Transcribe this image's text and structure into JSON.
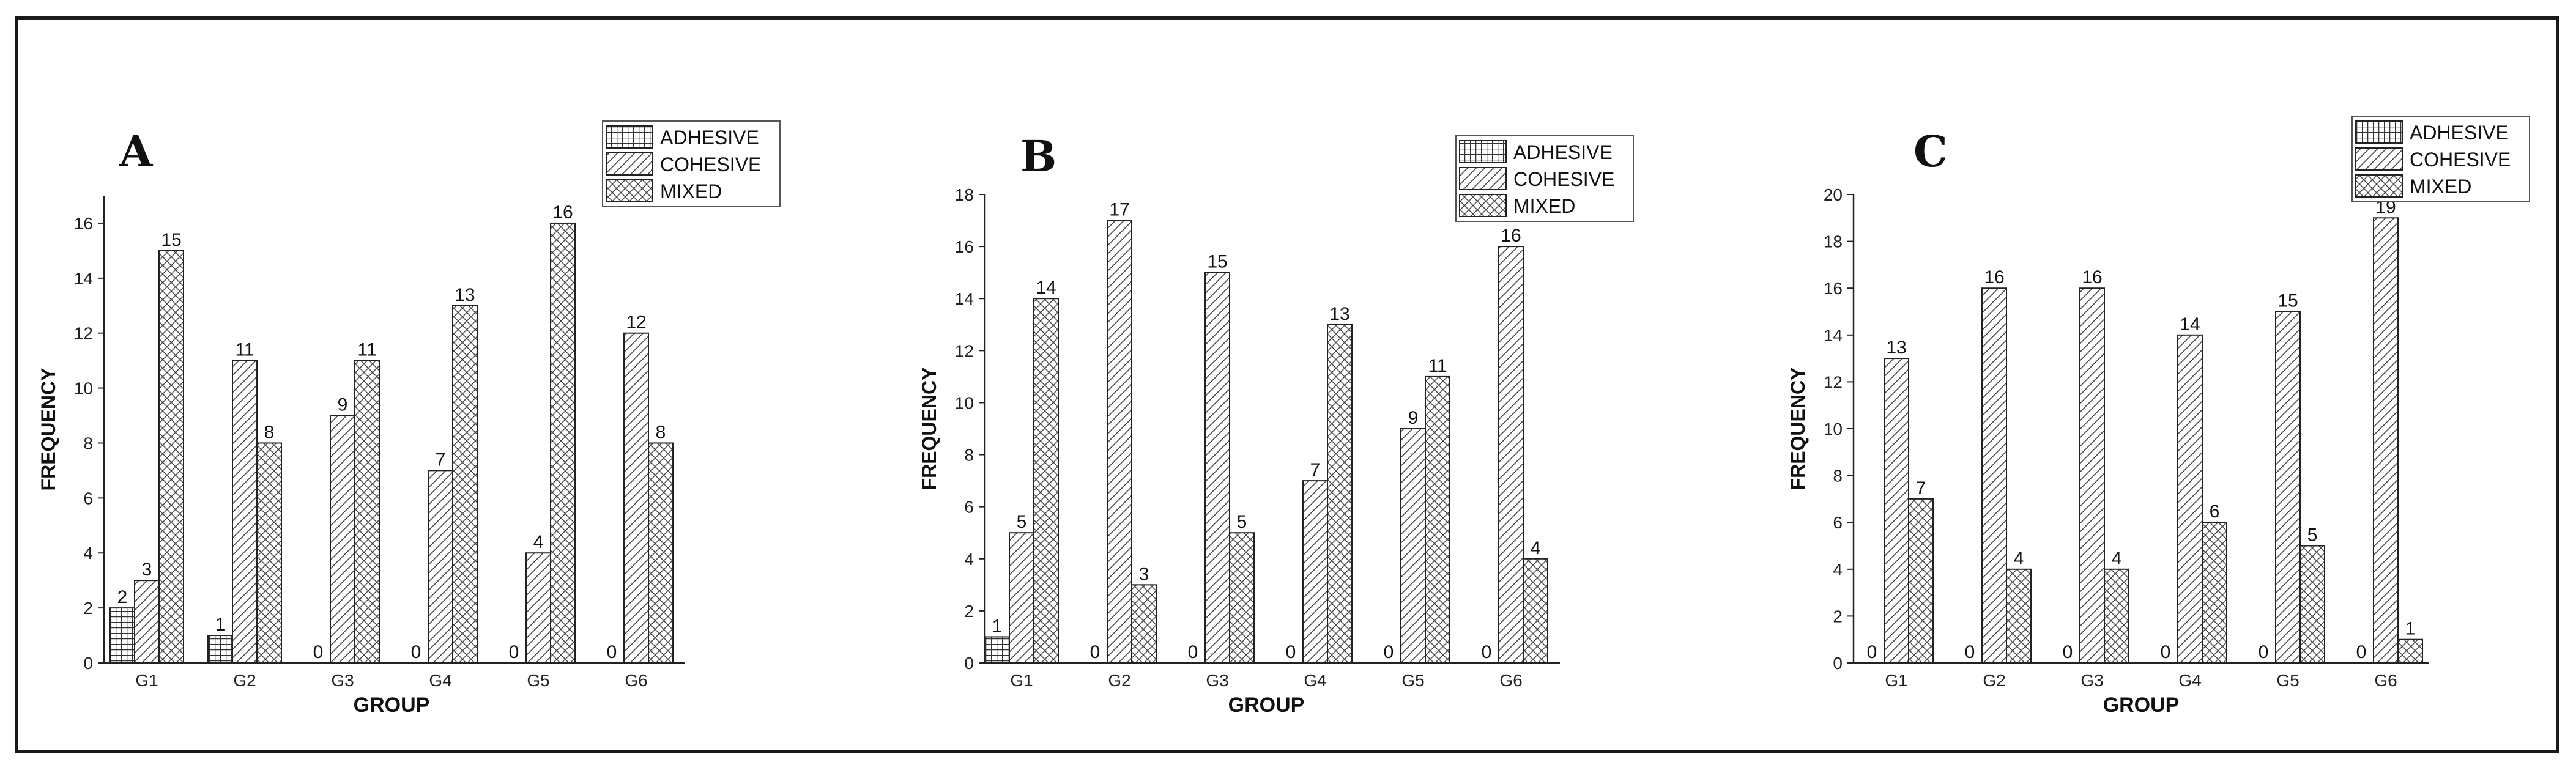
{
  "figure": {
    "legend_labels": [
      "ADHESIVE",
      "COHESIVE",
      "MIXED"
    ],
    "xlabel": "GROUP",
    "ylabel": "FREQUENCY"
  },
  "chart_data": [
    {
      "type": "bar",
      "panel": "A",
      "xlabel": "GROUP",
      "ylabel": "FREQUENCY",
      "ylim": [
        0,
        17
      ],
      "yticks": [
        0,
        2,
        4,
        6,
        8,
        10,
        12,
        14,
        16
      ],
      "categories": [
        "G1",
        "G2",
        "G3",
        "G4",
        "G5",
        "G6"
      ],
      "series": [
        {
          "name": "ADHESIVE",
          "values": [
            2,
            1,
            0,
            0,
            0,
            0
          ]
        },
        {
          "name": "COHESIVE",
          "values": [
            3,
            11,
            9,
            7,
            4,
            12
          ]
        },
        {
          "name": "MIXED",
          "values": [
            15,
            8,
            11,
            13,
            16,
            8
          ]
        }
      ],
      "legend_position": "top-right",
      "grid": false
    },
    {
      "type": "bar",
      "panel": "B",
      "xlabel": "GROUP",
      "ylabel": "FREQUENCY",
      "ylim": [
        0,
        18
      ],
      "yticks": [
        0,
        2,
        4,
        6,
        8,
        10,
        12,
        14,
        16,
        18
      ],
      "categories": [
        "G1",
        "G2",
        "G3",
        "G4",
        "G5",
        "G6"
      ],
      "series": [
        {
          "name": "ADHESIVE",
          "values": [
            1,
            0,
            0,
            0,
            0,
            0
          ]
        },
        {
          "name": "COHESIVE",
          "values": [
            5,
            17,
            15,
            7,
            9,
            16
          ]
        },
        {
          "name": "MIXED",
          "values": [
            14,
            3,
            5,
            13,
            11,
            4
          ]
        }
      ],
      "legend_position": "top-right",
      "grid": false
    },
    {
      "type": "bar",
      "panel": "C",
      "xlabel": "GROUP",
      "ylabel": "FREQUENCY",
      "ylim": [
        0,
        20
      ],
      "yticks": [
        0,
        2,
        4,
        6,
        8,
        10,
        12,
        14,
        16,
        18,
        20
      ],
      "categories": [
        "G1",
        "G2",
        "G3",
        "G4",
        "G5",
        "G6"
      ],
      "series": [
        {
          "name": "ADHESIVE",
          "values": [
            0,
            0,
            0,
            0,
            0,
            0
          ]
        },
        {
          "name": "COHESIVE",
          "values": [
            13,
            16,
            16,
            14,
            15,
            19
          ]
        },
        {
          "name": "MIXED",
          "values": [
            7,
            4,
            4,
            6,
            5,
            1
          ]
        }
      ],
      "legend_position": "top-right",
      "grid": false
    }
  ]
}
